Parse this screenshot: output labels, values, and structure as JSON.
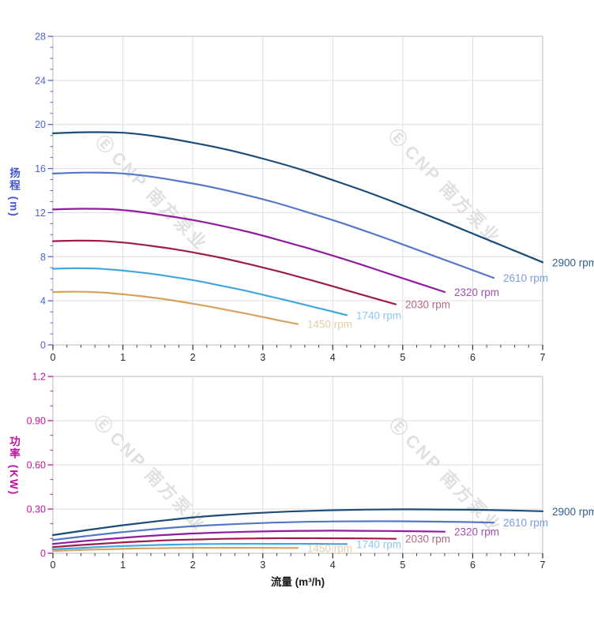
{
  "page": {
    "background": "#ffffff"
  },
  "watermark": {
    "logo_glyph": "Ⓔ",
    "text": "CNP 南方泵业"
  },
  "chart_data": [
    {
      "id": "head",
      "type": "line",
      "title": "",
      "xlabel": "",
      "ylabel": "扬程 (m)",
      "xlim": [
        0,
        7
      ],
      "ylim": [
        0,
        28
      ],
      "grid": true,
      "legend_position": "curve-end-right",
      "axis_color": "#5263d3",
      "tick_text_color": "#4f5fd2",
      "x_tick_color": "#3a3a3a",
      "x_minor_step": 0.2,
      "y_minor_step": 1,
      "xticks": [
        {
          "v": 0,
          "label": "0"
        },
        {
          "v": 1,
          "label": "1"
        },
        {
          "v": 2,
          "label": "2"
        },
        {
          "v": 3,
          "label": "3"
        },
        {
          "v": 4,
          "label": "4"
        },
        {
          "v": 5,
          "label": "5"
        },
        {
          "v": 6,
          "label": "6"
        },
        {
          "v": 7,
          "label": "7"
        }
      ],
      "yticks": [
        {
          "v": 0,
          "label": "0"
        },
        {
          "v": 4,
          "label": "4"
        },
        {
          "v": 8,
          "label": "8"
        },
        {
          "v": 12,
          "label": "12"
        },
        {
          "v": 16,
          "label": "16"
        },
        {
          "v": 20,
          "label": "20"
        },
        {
          "v": 24,
          "label": "24"
        },
        {
          "v": 28,
          "label": "28"
        }
      ],
      "series": [
        {
          "name": "2900 rpm",
          "color": "#1c4c77",
          "label_color": "#2e5e8e",
          "points": [
            [
              0,
              19.2
            ],
            [
              0.5,
              19.3
            ],
            [
              1,
              19.25
            ],
            [
              1.5,
              18.9
            ],
            [
              2,
              18.35
            ],
            [
              2.5,
              17.7
            ],
            [
              3,
              16.9
            ],
            [
              3.5,
              16.0
            ],
            [
              4,
              14.95
            ],
            [
              4.5,
              13.85
            ],
            [
              5,
              12.65
            ],
            [
              5.5,
              11.4
            ],
            [
              6,
              10.1
            ],
            [
              6.5,
              8.8
            ],
            [
              7,
              7.5
            ]
          ]
        },
        {
          "name": "2610 rpm",
          "color": "#5278c7",
          "label_color": "#7e9cdd",
          "points": [
            [
              0,
              15.55
            ],
            [
              0.45,
              15.63
            ],
            [
              0.9,
              15.59
            ],
            [
              1.35,
              15.31
            ],
            [
              1.8,
              14.86
            ],
            [
              2.25,
              14.34
            ],
            [
              2.7,
              13.69
            ],
            [
              3.15,
              12.96
            ],
            [
              3.6,
              12.11
            ],
            [
              4.05,
              11.22
            ],
            [
              4.5,
              10.25
            ],
            [
              4.95,
              9.23
            ],
            [
              5.4,
              8.18
            ],
            [
              5.85,
              7.13
            ],
            [
              6.3,
              6.08
            ]
          ]
        },
        {
          "name": "2320 rpm",
          "color": "#921c9e",
          "label_color": "#a150b2",
          "points": [
            [
              0,
              12.29
            ],
            [
              0.4,
              12.35
            ],
            [
              0.8,
              12.32
            ],
            [
              1.2,
              12.1
            ],
            [
              1.6,
              11.74
            ],
            [
              2.0,
              11.33
            ],
            [
              2.4,
              10.82
            ],
            [
              2.8,
              10.24
            ],
            [
              3.2,
              9.57
            ],
            [
              3.6,
              8.86
            ],
            [
              4.0,
              8.1
            ],
            [
              4.4,
              7.3
            ],
            [
              4.8,
              6.46
            ],
            [
              5.2,
              5.63
            ],
            [
              5.6,
              4.8
            ]
          ]
        },
        {
          "name": "2030 rpm",
          "color": "#9e1d49",
          "label_color": "#b06a80",
          "points": [
            [
              0,
              9.41
            ],
            [
              0.35,
              9.46
            ],
            [
              0.7,
              9.43
            ],
            [
              1.05,
              9.26
            ],
            [
              1.4,
              8.99
            ],
            [
              1.75,
              8.67
            ],
            [
              2.1,
              8.28
            ],
            [
              2.45,
              7.84
            ],
            [
              2.8,
              7.33
            ],
            [
              3.15,
              6.79
            ],
            [
              3.5,
              6.2
            ],
            [
              3.85,
              5.59
            ],
            [
              4.2,
              4.95
            ],
            [
              4.55,
              4.31
            ],
            [
              4.9,
              3.68
            ]
          ]
        },
        {
          "name": "1740 rpm",
          "color": "#41a7e1",
          "label_color": "#90c6ef",
          "points": [
            [
              0,
              6.91
            ],
            [
              0.3,
              6.95
            ],
            [
              0.6,
              6.93
            ],
            [
              0.9,
              6.8
            ],
            [
              1.2,
              6.61
            ],
            [
              1.5,
              6.37
            ],
            [
              1.8,
              6.08
            ],
            [
              2.1,
              5.76
            ],
            [
              2.4,
              5.38
            ],
            [
              2.7,
              4.99
            ],
            [
              3.0,
              4.55
            ],
            [
              3.3,
              4.1
            ],
            [
              3.6,
              3.64
            ],
            [
              3.9,
              3.17
            ],
            [
              4.2,
              2.7
            ]
          ]
        },
        {
          "name": "1450 rpm",
          "color": "#d7a260",
          "label_color": "#e7cda6",
          "points": [
            [
              0,
              4.8
            ],
            [
              0.25,
              4.83
            ],
            [
              0.5,
              4.81
            ],
            [
              0.75,
              4.73
            ],
            [
              1.0,
              4.59
            ],
            [
              1.25,
              4.43
            ],
            [
              1.5,
              4.23
            ],
            [
              1.75,
              4.0
            ],
            [
              2.0,
              3.74
            ],
            [
              2.25,
              3.46
            ],
            [
              2.5,
              3.16
            ],
            [
              2.75,
              2.85
            ],
            [
              3.0,
              2.53
            ],
            [
              3.25,
              2.2
            ],
            [
              3.5,
              1.88
            ]
          ]
        }
      ]
    },
    {
      "id": "power",
      "type": "line",
      "title": "",
      "xlabel": "流量 (m³/h)",
      "ylabel": "功率 (KW)",
      "xlim": [
        0,
        7
      ],
      "ylim": [
        0,
        1.2
      ],
      "grid": true,
      "legend_position": "curve-end-right",
      "axis_color": "#c713a0",
      "tick_text_color": "#c713a0",
      "x_tick_color": "#3a3a3a",
      "x_minor_step": 0.2,
      "y_minor_step": 0.1,
      "xticks": [
        {
          "v": 0,
          "label": "0"
        },
        {
          "v": 1,
          "label": "1"
        },
        {
          "v": 2,
          "label": "2"
        },
        {
          "v": 3,
          "label": "3"
        },
        {
          "v": 4,
          "label": "4"
        },
        {
          "v": 5,
          "label": "5"
        },
        {
          "v": 6,
          "label": "6"
        },
        {
          "v": 7,
          "label": "7"
        }
      ],
      "yticks": [
        {
          "v": 0,
          "label": "0"
        },
        {
          "v": 0.3,
          "label": "0.30"
        },
        {
          "v": 0.6,
          "label": "0.60"
        },
        {
          "v": 0.9,
          "label": "0.90"
        },
        {
          "v": 1.2,
          "label": "1.2"
        }
      ],
      "series": [
        {
          "name": "2900 rpm",
          "color": "#1c4c77",
          "label_color": "#2e5e8e",
          "points": [
            [
              0,
              0.123
            ],
            [
              0.5,
              0.158
            ],
            [
              1,
              0.19
            ],
            [
              1.5,
              0.218
            ],
            [
              2,
              0.243
            ],
            [
              2.5,
              0.261
            ],
            [
              3,
              0.275
            ],
            [
              3.5,
              0.285
            ],
            [
              4,
              0.292
            ],
            [
              4.5,
              0.296
            ],
            [
              5,
              0.298
            ],
            [
              5.5,
              0.297
            ],
            [
              6,
              0.295
            ],
            [
              6.5,
              0.291
            ],
            [
              7,
              0.285
            ]
          ]
        },
        {
          "name": "2610 rpm",
          "color": "#5278c7",
          "label_color": "#7e9cdd",
          "points": [
            [
              0,
              0.09
            ],
            [
              0.45,
              0.115
            ],
            [
              0.9,
              0.139
            ],
            [
              1.35,
              0.159
            ],
            [
              1.8,
              0.177
            ],
            [
              2.25,
              0.19
            ],
            [
              2.7,
              0.2
            ],
            [
              3.15,
              0.208
            ],
            [
              3.6,
              0.213
            ],
            [
              4.05,
              0.216
            ],
            [
              4.5,
              0.217
            ],
            [
              4.95,
              0.217
            ],
            [
              5.4,
              0.215
            ],
            [
              5.85,
              0.212
            ],
            [
              6.3,
              0.208
            ]
          ]
        },
        {
          "name": "2320 rpm",
          "color": "#921c9e",
          "label_color": "#a150b2",
          "points": [
            [
              0,
              0.063
            ],
            [
              0.4,
              0.081
            ],
            [
              0.8,
              0.097
            ],
            [
              1.2,
              0.112
            ],
            [
              1.6,
              0.124
            ],
            [
              2.0,
              0.134
            ],
            [
              2.4,
              0.141
            ],
            [
              2.8,
              0.146
            ],
            [
              3.2,
              0.15
            ],
            [
              3.6,
              0.152
            ],
            [
              4.0,
              0.153
            ],
            [
              4.4,
              0.152
            ],
            [
              4.8,
              0.151
            ],
            [
              5.2,
              0.149
            ],
            [
              5.6,
              0.146
            ]
          ]
        },
        {
          "name": "2030 rpm",
          "color": "#9e1d49",
          "label_color": "#b06a80",
          "points": [
            [
              0,
              0.042
            ],
            [
              0.35,
              0.054
            ],
            [
              0.7,
              0.065
            ],
            [
              1.05,
              0.075
            ],
            [
              1.4,
              0.083
            ],
            [
              1.75,
              0.09
            ],
            [
              2.1,
              0.094
            ],
            [
              2.45,
              0.098
            ],
            [
              2.8,
              0.1
            ],
            [
              3.15,
              0.102
            ],
            [
              3.5,
              0.102
            ],
            [
              3.85,
              0.102
            ],
            [
              4.2,
              0.101
            ],
            [
              4.55,
              0.1
            ],
            [
              4.9,
              0.098
            ]
          ]
        },
        {
          "name": "1740 rpm",
          "color": "#41a7e1",
          "label_color": "#90c6ef",
          "points": [
            [
              0,
              0.027
            ],
            [
              0.3,
              0.034
            ],
            [
              0.6,
              0.041
            ],
            [
              0.9,
              0.047
            ],
            [
              1.2,
              0.052
            ],
            [
              1.5,
              0.056
            ],
            [
              1.8,
              0.059
            ],
            [
              2.1,
              0.062
            ],
            [
              2.4,
              0.063
            ],
            [
              2.7,
              0.064
            ],
            [
              3.0,
              0.064
            ],
            [
              3.3,
              0.064
            ],
            [
              3.6,
              0.064
            ],
            [
              3.9,
              0.063
            ],
            [
              4.2,
              0.062
            ]
          ]
        },
        {
          "name": "1450 rpm",
          "color": "#d7a260",
          "label_color": "#e7cda6",
          "points": [
            [
              0,
              0.015
            ],
            [
              0.25,
              0.02
            ],
            [
              0.5,
              0.024
            ],
            [
              0.75,
              0.027
            ],
            [
              1.0,
              0.03
            ],
            [
              1.25,
              0.033
            ],
            [
              1.5,
              0.034
            ],
            [
              1.75,
              0.036
            ],
            [
              2.0,
              0.037
            ],
            [
              2.25,
              0.037
            ],
            [
              2.5,
              0.037
            ],
            [
              2.75,
              0.037
            ],
            [
              3.0,
              0.037
            ],
            [
              3.25,
              0.036
            ],
            [
              3.5,
              0.036
            ]
          ]
        }
      ]
    }
  ]
}
